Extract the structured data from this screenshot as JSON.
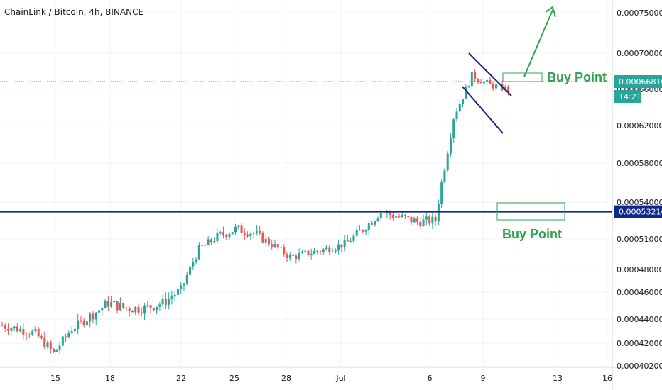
{
  "header": {
    "title": "ChainLink / Bitcoin, 4h, BINANCE"
  },
  "annotations": {
    "buy_point_upper": "Buy Point",
    "buy_point_lower": "Buy Point"
  },
  "price_tags": {
    "upper_price": "0.00066810",
    "countdown": "14:21",
    "lower_price": "0.00053216"
  },
  "colors": {
    "bullish": "#26a69a",
    "bearish": "#ef5350",
    "support_line": "#0d2a8a",
    "channel_line": "#1a237e",
    "annotation": "#2ea44f",
    "current_price_tag": "#26a69a",
    "support_tag": "#0d2a8a"
  },
  "chart_data": {
    "type": "candlestick",
    "symbol": "ChainLink / Bitcoin",
    "interval": "4h",
    "exchange": "BINANCE",
    "y_ticks": [
      "0.00075000",
      "0.00070000",
      "0.00066000",
      "0.00062000",
      "0.00058000",
      "0.00054000",
      "0.00051000",
      "0.00048000",
      "0.00046000",
      "0.00044000",
      "0.00042000",
      "0.00040200"
    ],
    "x_ticks": [
      "15",
      "18",
      "22",
      "25",
      "28",
      "Jul",
      "6",
      "9",
      "13",
      "16"
    ],
    "current_price": 0.0006681,
    "support_level": 0.00053216,
    "grid": true,
    "closes_approx": [
      [
        "12",
        0.000435
      ],
      [
        "13",
        0.000432
      ],
      [
        "14",
        0.000428
      ],
      [
        "15",
        0.000412
      ],
      [
        "16",
        0.000432
      ],
      [
        "17",
        0.000442
      ],
      [
        "18",
        0.000452
      ],
      [
        "19",
        0.000448
      ],
      [
        "20",
        0.000448
      ],
      [
        "21",
        0.000452
      ],
      [
        "22",
        0.000462
      ],
      [
        "23",
        0.0005
      ],
      [
        "24",
        0.000512
      ],
      [
        "25",
        0.000518
      ],
      [
        "26",
        0.000515
      ],
      [
        "27",
        0.000505
      ],
      [
        "28",
        0.000492
      ],
      [
        "29",
        0.000496
      ],
      [
        "30",
        0.0005
      ],
      [
        "Jul",
        0.000505
      ],
      [
        "2",
        0.000518
      ],
      [
        "3",
        0.000532
      ],
      [
        "4",
        0.000528
      ],
      [
        "5",
        0.000524
      ],
      [
        "6",
        0.000525
      ],
      [
        "7",
        0.00063
      ],
      [
        "8",
        0.000675
      ],
      [
        "9",
        0.000665
      ],
      [
        "10",
        0.00066
      ]
    ]
  }
}
